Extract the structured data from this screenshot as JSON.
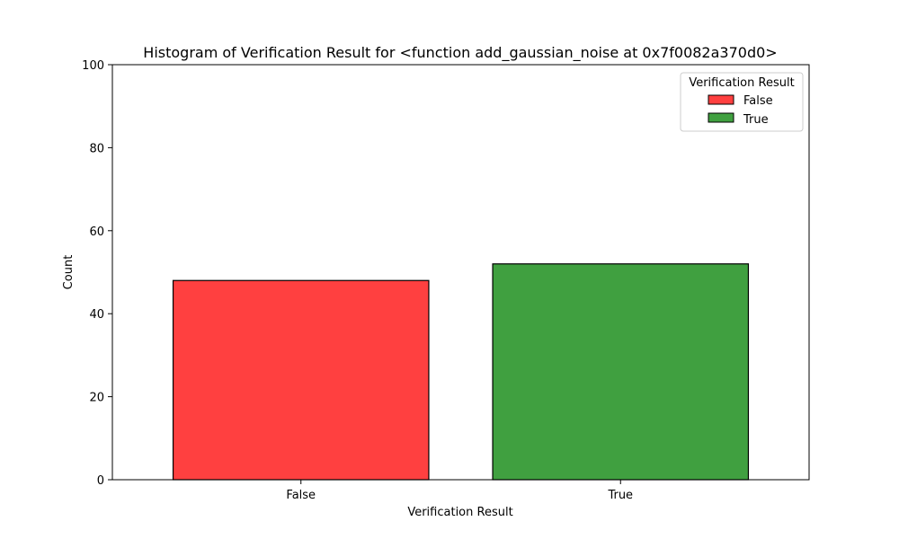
{
  "chart_data": {
    "type": "bar",
    "title": "Histogram of Verification Result for <function add_gaussian_noise at 0x7f0082a370d0>",
    "xlabel": "Verification Result",
    "ylabel": "Count",
    "categories": [
      "False",
      "True"
    ],
    "values": [
      48,
      52
    ],
    "colors": [
      "#ff4040",
      "#40a040"
    ],
    "ylim": [
      0,
      100
    ],
    "yticks": [
      "0",
      "20",
      "40",
      "60",
      "80",
      "100"
    ],
    "grid": false,
    "legend": {
      "title": "Verification Result",
      "placement": "top-right",
      "entries": [
        "False",
        "True"
      ]
    }
  }
}
